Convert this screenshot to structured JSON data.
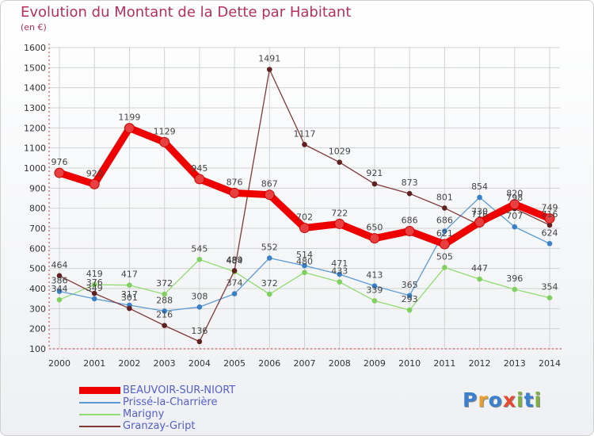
{
  "title": "Evolution du Montant de la Dette par Habitant",
  "subtitle": "(en €)",
  "logo": {
    "text": "Proxiti",
    "letters": [
      {
        "ch": "P",
        "color": "#3a7fd0"
      },
      {
        "ch": "r",
        "color": "#e8a030"
      },
      {
        "ch": "o",
        "color": "#3a7fd0"
      },
      {
        "ch": "x",
        "color": "#e84a30"
      },
      {
        "ch": "i",
        "color": "#80b040"
      },
      {
        "ch": "t",
        "color": "#3a7fd0"
      },
      {
        "ch": "i",
        "color": "#80b040"
      }
    ]
  },
  "chart_data": {
    "type": "line",
    "title": "Evolution du Montant de la Dette par Habitant",
    "subtitle": "(en €)",
    "xlabel": "",
    "ylabel": "",
    "x": [
      "2000",
      "2001",
      "2002",
      "2003",
      "2004",
      "2005",
      "2006",
      "2007",
      "2008",
      "2009",
      "2010",
      "2011",
      "2012",
      "2013",
      "2014"
    ],
    "yticks": [
      100,
      200,
      300,
      400,
      500,
      600,
      700,
      800,
      900,
      1000,
      1100,
      1200,
      1300,
      1400,
      1500,
      1600
    ],
    "ylim": [
      100,
      1600
    ],
    "grid": true,
    "legend_position": "bottom-left",
    "series": [
      {
        "name": "BEAUVOIR-SUR-NIORT",
        "color": "#ee0000",
        "marker": "#e84040",
        "width": "thick",
        "values": [
          976,
          920,
          1199,
          1129,
          945,
          876,
          867,
          702,
          722,
          650,
          686,
          621,
          730,
          820,
          749
        ]
      },
      {
        "name": "Prissé-la-Charrière",
        "color": "#5b9bd5",
        "marker": "#3a80c8",
        "width": "thin",
        "values": [
          386,
          349,
          317,
          288,
          308,
          374,
          552,
          514,
          471,
          413,
          365,
          686,
          854,
          707,
          624
        ]
      },
      {
        "name": "Marigny",
        "color": "#90dd70",
        "marker": "#80d060",
        "width": "thin",
        "values": [
          344,
          419,
          417,
          372,
          545,
          484,
          372,
          480,
          433,
          339,
          293,
          505,
          447,
          396,
          354
        ]
      },
      {
        "name": "Granzay-Gript",
        "color": "#803838",
        "marker": "#602020",
        "width": "thin",
        "values": [
          464,
          376,
          301,
          216,
          136,
          489,
          1491,
          1117,
          1029,
          921,
          873,
          801,
          716,
          798,
          716
        ]
      }
    ],
    "annotations": {
      "label_series": [
        0,
        1,
        2,
        3
      ]
    }
  }
}
